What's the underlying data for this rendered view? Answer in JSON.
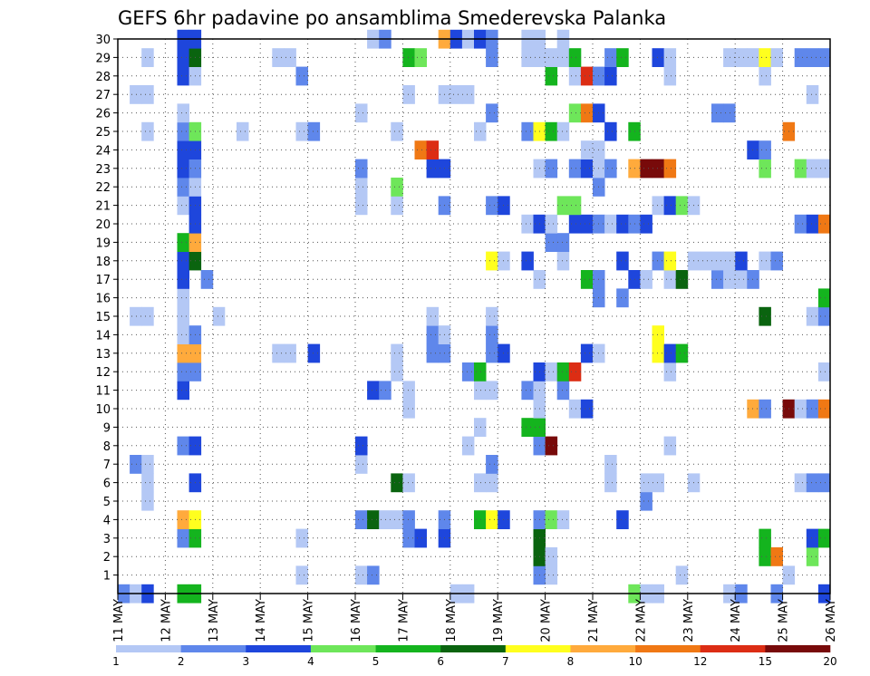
{
  "chart_data": {
    "type": "heatmap",
    "title": "GEFS 6hr padavine po ansamblima Smederevska Palanka",
    "x_ticks": [
      "11 MAY",
      "12 MAY",
      "13 MAY",
      "14 MAY",
      "15 MAY",
      "16 MAY",
      "17 MAY",
      "18 MAY",
      "19 MAY",
      "20 MAY",
      "21 MAY",
      "22 MAY",
      "23 MAY",
      "24 MAY",
      "25 MAY",
      "26 MAY"
    ],
    "y_ticks": [
      "1",
      "2",
      "3",
      "4",
      "5",
      "6",
      "7",
      "8",
      "9",
      "10",
      "11",
      "12",
      "13",
      "14",
      "15",
      "16",
      "17",
      "18",
      "19",
      "20",
      "21",
      "22",
      "23",
      "24",
      "25",
      "26",
      "27",
      "28",
      "29",
      "30"
    ],
    "ylim": [
      0,
      30
    ],
    "x_steps": 60,
    "colorbar": {
      "labels": [
        "1",
        "2",
        "3",
        "4",
        "5",
        "6",
        "7",
        "8",
        "10",
        "12",
        "15",
        "20"
      ],
      "colors": [
        "#b4c8f5",
        "#5f87eb",
        "#1e46dc",
        "#6ee65a",
        "#14b41e",
        "#0a640f",
        "#ffff1e",
        "#ffaa3c",
        "#f07814",
        "#dc2d14",
        "#780a0a"
      ]
    },
    "cells": [
      [
        0,
        0,
        2
      ],
      [
        1,
        0,
        1
      ],
      [
        2,
        0,
        3
      ],
      [
        5,
        0,
        5
      ],
      [
        6,
        0,
        5
      ],
      [
        28,
        0,
        1
      ],
      [
        29,
        0,
        1
      ],
      [
        43,
        0,
        4
      ],
      [
        44,
        0,
        1
      ],
      [
        45,
        0,
        1
      ],
      [
        51,
        0,
        1
      ],
      [
        52,
        0,
        2
      ],
      [
        55,
        0,
        2
      ],
      [
        59,
        0,
        3
      ],
      [
        15,
        1,
        1
      ],
      [
        56,
        1,
        1
      ],
      [
        20,
        1,
        1
      ],
      [
        21,
        1,
        2
      ],
      [
        36,
        1,
        1
      ],
      [
        35,
        1,
        2
      ],
      [
        47,
        1,
        1
      ],
      [
        35,
        2,
        6
      ],
      [
        36,
        2,
        1
      ],
      [
        54,
        2,
        5
      ],
      [
        55,
        2,
        9
      ],
      [
        58,
        2,
        4
      ],
      [
        5,
        3,
        2
      ],
      [
        6,
        3,
        5
      ],
      [
        15,
        3,
        1
      ],
      [
        24,
        3,
        2
      ],
      [
        25,
        3,
        3
      ],
      [
        27,
        3,
        3
      ],
      [
        35,
        3,
        6
      ],
      [
        54,
        3,
        5
      ],
      [
        58,
        3,
        3
      ],
      [
        59,
        3,
        5
      ],
      [
        5,
        4,
        8
      ],
      [
        6,
        4,
        7
      ],
      [
        20,
        4,
        2
      ],
      [
        21,
        4,
        6
      ],
      [
        22,
        4,
        1
      ],
      [
        23,
        4,
        1
      ],
      [
        24,
        4,
        2
      ],
      [
        27,
        4,
        2
      ],
      [
        30,
        4,
        5
      ],
      [
        31,
        4,
        7
      ],
      [
        32,
        4,
        3
      ],
      [
        35,
        4,
        2
      ],
      [
        36,
        4,
        4
      ],
      [
        37,
        4,
        1
      ],
      [
        42,
        4,
        3
      ],
      [
        2,
        5,
        1
      ],
      [
        44,
        5,
        2
      ],
      [
        2,
        6,
        1
      ],
      [
        6,
        6,
        3
      ],
      [
        23,
        6,
        6
      ],
      [
        24,
        6,
        1
      ],
      [
        30,
        6,
        1
      ],
      [
        31,
        6,
        1
      ],
      [
        41,
        6,
        1
      ],
      [
        44,
        6,
        1
      ],
      [
        45,
        6,
        1
      ],
      [
        48,
        6,
        1
      ],
      [
        57,
        6,
        1
      ],
      [
        58,
        6,
        2
      ],
      [
        59,
        6,
        2
      ],
      [
        1,
        7,
        2
      ],
      [
        2,
        7,
        1
      ],
      [
        20,
        7,
        1
      ],
      [
        31,
        7,
        2
      ],
      [
        41,
        7,
        1
      ],
      [
        5,
        8,
        2
      ],
      [
        6,
        8,
        3
      ],
      [
        20,
        8,
        3
      ],
      [
        29,
        8,
        1
      ],
      [
        35,
        8,
        2
      ],
      [
        36,
        8,
        11
      ],
      [
        46,
        8,
        1
      ],
      [
        30,
        9,
        1
      ],
      [
        34,
        9,
        5
      ],
      [
        35,
        9,
        5
      ],
      [
        24,
        10,
        1
      ],
      [
        35,
        10,
        1
      ],
      [
        38,
        10,
        1
      ],
      [
        39,
        10,
        3
      ],
      [
        53,
        10,
        8
      ],
      [
        54,
        10,
        2
      ],
      [
        56,
        10,
        11
      ],
      [
        57,
        10,
        1
      ],
      [
        58,
        10,
        2
      ],
      [
        59,
        10,
        9
      ],
      [
        5,
        11,
        3
      ],
      [
        21,
        11,
        3
      ],
      [
        22,
        11,
        2
      ],
      [
        24,
        11,
        1
      ],
      [
        30,
        11,
        1
      ],
      [
        31,
        11,
        1
      ],
      [
        34,
        11,
        2
      ],
      [
        35,
        11,
        1
      ],
      [
        37,
        11,
        2
      ],
      [
        5,
        12,
        2
      ],
      [
        6,
        12,
        2
      ],
      [
        23,
        12,
        1
      ],
      [
        29,
        12,
        2
      ],
      [
        30,
        12,
        5
      ],
      [
        35,
        12,
        3
      ],
      [
        36,
        12,
        1
      ],
      [
        37,
        12,
        5
      ],
      [
        38,
        12,
        10
      ],
      [
        46,
        12,
        1
      ],
      [
        59,
        12,
        1
      ],
      [
        5,
        13,
        8
      ],
      [
        6,
        13,
        8
      ],
      [
        13,
        13,
        1
      ],
      [
        14,
        13,
        1
      ],
      [
        16,
        13,
        3
      ],
      [
        23,
        13,
        1
      ],
      [
        26,
        13,
        2
      ],
      [
        27,
        13,
        2
      ],
      [
        31,
        13,
        2
      ],
      [
        32,
        13,
        3
      ],
      [
        39,
        13,
        3
      ],
      [
        40,
        13,
        1
      ],
      [
        45,
        13,
        7
      ],
      [
        46,
        13,
        3
      ],
      [
        47,
        13,
        5
      ],
      [
        5,
        14,
        1
      ],
      [
        6,
        14,
        2
      ],
      [
        26,
        14,
        2
      ],
      [
        27,
        14,
        1
      ],
      [
        31,
        14,
        2
      ],
      [
        45,
        14,
        7
      ],
      [
        1,
        15,
        1
      ],
      [
        2,
        15,
        1
      ],
      [
        5,
        15,
        1
      ],
      [
        8,
        15,
        1
      ],
      [
        26,
        15,
        1
      ],
      [
        31,
        15,
        1
      ],
      [
        54,
        15,
        6
      ],
      [
        58,
        15,
        1
      ],
      [
        59,
        15,
        2
      ],
      [
        5,
        16,
        1
      ],
      [
        40,
        16,
        2
      ],
      [
        42,
        16,
        2
      ],
      [
        59,
        16,
        5
      ],
      [
        5,
        17,
        3
      ],
      [
        7,
        17,
        2
      ],
      [
        35,
        17,
        1
      ],
      [
        39,
        17,
        5
      ],
      [
        40,
        17,
        2
      ],
      [
        43,
        17,
        3
      ],
      [
        44,
        17,
        1
      ],
      [
        46,
        17,
        1
      ],
      [
        47,
        17,
        6
      ],
      [
        50,
        17,
        2
      ],
      [
        51,
        17,
        1
      ],
      [
        52,
        17,
        1
      ],
      [
        53,
        17,
        2
      ],
      [
        5,
        18,
        3
      ],
      [
        6,
        18,
        6
      ],
      [
        31,
        18,
        7
      ],
      [
        32,
        18,
        1
      ],
      [
        34,
        18,
        3
      ],
      [
        37,
        18,
        1
      ],
      [
        42,
        18,
        3
      ],
      [
        45,
        18,
        2
      ],
      [
        46,
        18,
        7
      ],
      [
        48,
        18,
        1
      ],
      [
        49,
        18,
        1
      ],
      [
        50,
        18,
        1
      ],
      [
        51,
        18,
        1
      ],
      [
        52,
        18,
        3
      ],
      [
        54,
        18,
        1
      ],
      [
        55,
        18,
        2
      ],
      [
        5,
        19,
        5
      ],
      [
        6,
        19,
        8
      ],
      [
        36,
        19,
        2
      ],
      [
        37,
        19,
        2
      ],
      [
        6,
        20,
        3
      ],
      [
        34,
        20,
        1
      ],
      [
        35,
        20,
        3
      ],
      [
        36,
        20,
        1
      ],
      [
        38,
        20,
        3
      ],
      [
        39,
        20,
        3
      ],
      [
        40,
        20,
        2
      ],
      [
        41,
        20,
        1
      ],
      [
        42,
        20,
        3
      ],
      [
        43,
        20,
        2
      ],
      [
        44,
        20,
        3
      ],
      [
        57,
        20,
        2
      ],
      [
        58,
        20,
        3
      ],
      [
        59,
        20,
        9
      ],
      [
        5,
        21,
        1
      ],
      [
        6,
        21,
        3
      ],
      [
        20,
        21,
        1
      ],
      [
        23,
        21,
        1
      ],
      [
        27,
        21,
        2
      ],
      [
        31,
        21,
        2
      ],
      [
        32,
        21,
        3
      ],
      [
        37,
        21,
        4
      ],
      [
        38,
        21,
        4
      ],
      [
        45,
        21,
        1
      ],
      [
        46,
        21,
        3
      ],
      [
        47,
        21,
        4
      ],
      [
        48,
        21,
        1
      ],
      [
        5,
        22,
        2
      ],
      [
        6,
        22,
        1
      ],
      [
        20,
        22,
        1
      ],
      [
        23,
        22,
        4
      ],
      [
        40,
        22,
        2
      ],
      [
        5,
        23,
        3
      ],
      [
        6,
        23,
        2
      ],
      [
        20,
        23,
        2
      ],
      [
        26,
        23,
        3
      ],
      [
        27,
        23,
        3
      ],
      [
        35,
        23,
        1
      ],
      [
        36,
        23,
        2
      ],
      [
        38,
        23,
        2
      ],
      [
        39,
        23,
        3
      ],
      [
        40,
        23,
        1
      ],
      [
        41,
        23,
        2
      ],
      [
        43,
        23,
        8
      ],
      [
        44,
        23,
        11
      ],
      [
        45,
        23,
        11
      ],
      [
        46,
        23,
        9
      ],
      [
        54,
        23,
        4
      ],
      [
        57,
        23,
        4
      ],
      [
        58,
        23,
        1
      ],
      [
        59,
        23,
        1
      ],
      [
        5,
        24,
        3
      ],
      [
        6,
        24,
        3
      ],
      [
        25,
        24,
        9
      ],
      [
        26,
        24,
        10
      ],
      [
        39,
        24,
        1
      ],
      [
        40,
        24,
        1
      ],
      [
        53,
        24,
        3
      ],
      [
        54,
        24,
        2
      ],
      [
        2,
        25,
        1
      ],
      [
        5,
        25,
        2
      ],
      [
        6,
        25,
        4
      ],
      [
        10,
        25,
        1
      ],
      [
        15,
        25,
        1
      ],
      [
        16,
        25,
        2
      ],
      [
        23,
        25,
        1
      ],
      [
        30,
        25,
        1
      ],
      [
        34,
        25,
        2
      ],
      [
        35,
        25,
        7
      ],
      [
        36,
        25,
        5
      ],
      [
        37,
        25,
        1
      ],
      [
        41,
        25,
        3
      ],
      [
        43,
        25,
        5
      ],
      [
        56,
        25,
        9
      ],
      [
        5,
        26,
        1
      ],
      [
        20,
        26,
        1
      ],
      [
        31,
        26,
        2
      ],
      [
        38,
        26,
        4
      ],
      [
        39,
        26,
        9
      ],
      [
        40,
        26,
        3
      ],
      [
        50,
        26,
        2
      ],
      [
        51,
        26,
        2
      ],
      [
        1,
        27,
        1
      ],
      [
        2,
        27,
        1
      ],
      [
        24,
        27,
        1
      ],
      [
        27,
        27,
        1
      ],
      [
        28,
        27,
        1
      ],
      [
        29,
        27,
        1
      ],
      [
        58,
        27,
        1
      ],
      [
        5,
        28,
        3
      ],
      [
        6,
        28,
        1
      ],
      [
        15,
        28,
        2
      ],
      [
        36,
        28,
        5
      ],
      [
        38,
        28,
        1
      ],
      [
        39,
        28,
        10
      ],
      [
        40,
        28,
        2
      ],
      [
        41,
        28,
        3
      ],
      [
        46,
        28,
        1
      ],
      [
        54,
        28,
        1
      ],
      [
        2,
        29,
        1
      ],
      [
        5,
        29,
        3
      ],
      [
        6,
        29,
        6
      ],
      [
        13,
        29,
        1
      ],
      [
        14,
        29,
        1
      ],
      [
        24,
        29,
        5
      ],
      [
        25,
        29,
        4
      ],
      [
        31,
        29,
        2
      ],
      [
        34,
        29,
        1
      ],
      [
        35,
        29,
        1
      ],
      [
        36,
        29,
        1
      ],
      [
        37,
        29,
        1
      ],
      [
        38,
        29,
        5
      ],
      [
        41,
        29,
        2
      ],
      [
        42,
        29,
        5
      ],
      [
        45,
        29,
        3
      ],
      [
        46,
        29,
        1
      ],
      [
        51,
        29,
        1
      ],
      [
        52,
        29,
        1
      ],
      [
        53,
        29,
        1
      ],
      [
        54,
        29,
        7
      ],
      [
        55,
        29,
        1
      ],
      [
        57,
        29,
        2
      ],
      [
        58,
        29,
        2
      ],
      [
        59,
        29,
        2
      ],
      [
        5,
        30,
        3
      ],
      [
        6,
        30,
        3
      ],
      [
        21,
        30,
        1
      ],
      [
        22,
        30,
        2
      ],
      [
        27,
        30,
        8
      ],
      [
        28,
        30,
        3
      ],
      [
        29,
        30,
        1
      ],
      [
        30,
        30,
        3
      ],
      [
        31,
        30,
        2
      ],
      [
        34,
        30,
        1
      ],
      [
        35,
        30,
        1
      ],
      [
        37,
        30,
        1
      ]
    ]
  }
}
